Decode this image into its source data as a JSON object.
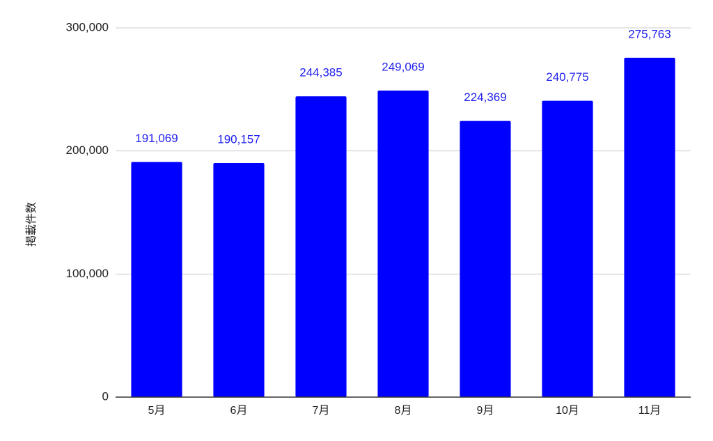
{
  "chart_data": {
    "type": "bar",
    "categories": [
      "5月",
      "6月",
      "7月",
      "8月",
      "9月",
      "10月",
      "11月"
    ],
    "series": [
      {
        "values": [
          191069,
          190157,
          244385,
          249069,
          224369,
          240775,
          275763
        ],
        "labels": [
          "191,069",
          "190,157",
          "244,385",
          "249,069",
          "224,369",
          "240,775",
          "275,763"
        ]
      }
    ],
    "title": "",
    "xlabel": "",
    "ylabel": "掲載件数",
    "ylim": [
      0,
      300000
    ],
    "yticks": [
      {
        "value": 0,
        "label": "0"
      },
      {
        "value": 100000,
        "label": "100,000"
      },
      {
        "value": 200000,
        "label": "200,000"
      },
      {
        "value": 300000,
        "label": "300,000"
      }
    ],
    "grid": true,
    "legend": "none",
    "colors": {
      "bar": "#0000ff",
      "data_label": "#2222ee",
      "grid": "#cccccc",
      "axis": "#333333",
      "text": "#222222"
    }
  }
}
